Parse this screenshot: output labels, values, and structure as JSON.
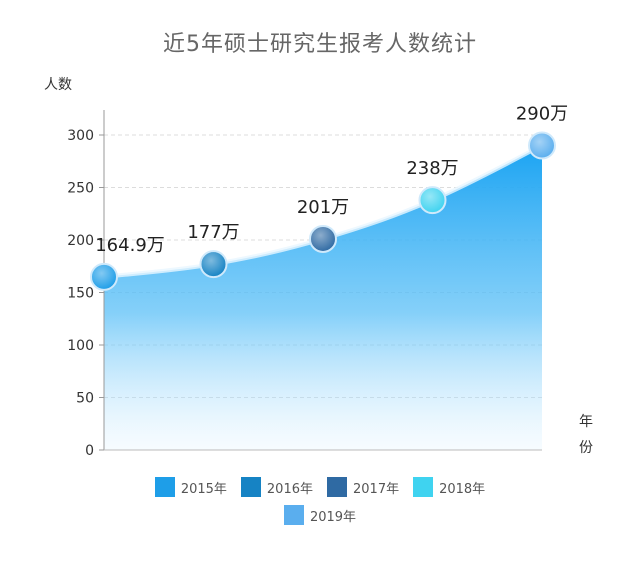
{
  "chart_data": {
    "type": "area",
    "title": "近5年硕士研究生报考人数统计",
    "ylabel": "人数",
    "xlabel": "年份",
    "ylim": [
      0,
      300
    ],
    "yticks": [
      0,
      50,
      100,
      150,
      200,
      250,
      300
    ],
    "categories": [
      "2015年",
      "2016年",
      "2017年",
      "2018年",
      "2019年"
    ],
    "values": [
      164.9,
      177,
      201,
      238,
      290
    ],
    "data_labels": [
      "164.9万",
      "177万",
      "201万",
      "238万",
      "290万"
    ],
    "point_colors": [
      "#1e9ee8",
      "#1683c4",
      "#2f6aa3",
      "#3fd3f0",
      "#5aaeee"
    ],
    "area_color": "#1fa8f3",
    "grid": true,
    "legend": "bottom"
  }
}
